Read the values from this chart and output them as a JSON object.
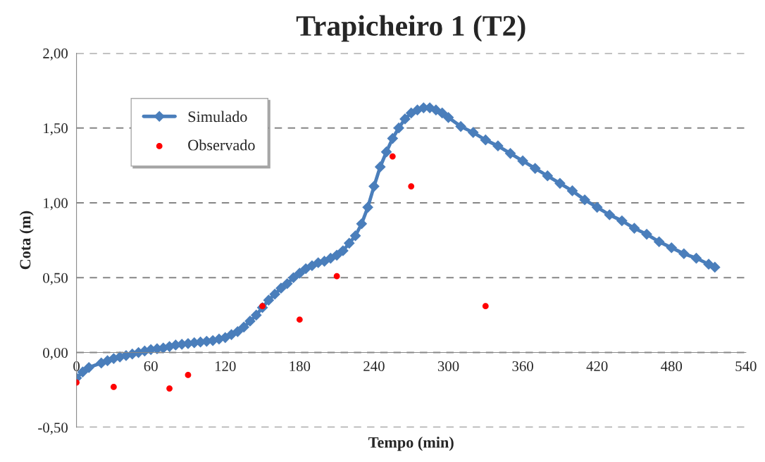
{
  "chart_data": {
    "type": "line",
    "title": "Trapicheiro 1 (T2)",
    "xlabel": "Tempo (min)",
    "ylabel": "Cota (m)",
    "xlim": [
      0,
      540
    ],
    "xticks": [
      0,
      60,
      120,
      180,
      240,
      300,
      360,
      420,
      480,
      540
    ],
    "ylim": [
      -0.5,
      2.0
    ],
    "yticks": [
      {
        "value": -0.5,
        "label": "-0,50"
      },
      {
        "value": 0,
        "label": "0,00"
      },
      {
        "value": 0.5,
        "label": "0,50"
      },
      {
        "value": 1.0,
        "label": "1,00"
      },
      {
        "value": 1.5,
        "label": "1,50"
      },
      {
        "value": 2.0,
        "label": "2,00"
      }
    ],
    "grid": "y",
    "legend": "top left",
    "series": [
      {
        "name": "Simulado",
        "color": "#4a7ebb",
        "marker": "diamond",
        "x": [
          0,
          5,
          10,
          20,
          25,
          30,
          35,
          40,
          45,
          50,
          55,
          60,
          65,
          70,
          75,
          80,
          85,
          90,
          95,
          100,
          105,
          110,
          115,
          120,
          125,
          130,
          135,
          140,
          145,
          150,
          155,
          160,
          165,
          170,
          175,
          180,
          185,
          190,
          195,
          200,
          205,
          210,
          215,
          220,
          225,
          230,
          235,
          240,
          245,
          250,
          255,
          260,
          265,
          270,
          275,
          280,
          285,
          290,
          295,
          300,
          310,
          320,
          330,
          340,
          350,
          360,
          370,
          380,
          390,
          400,
          410,
          420,
          430,
          440,
          450,
          460,
          470,
          480,
          490,
          500,
          510,
          515
        ],
        "values": [
          -0.17,
          -0.13,
          -0.1,
          -0.07,
          -0.055,
          -0.04,
          -0.03,
          -0.02,
          -0.01,
          0.0,
          0.01,
          0.02,
          0.025,
          0.03,
          0.04,
          0.05,
          0.055,
          0.06,
          0.065,
          0.07,
          0.075,
          0.08,
          0.09,
          0.1,
          0.12,
          0.14,
          0.17,
          0.21,
          0.25,
          0.3,
          0.35,
          0.39,
          0.43,
          0.46,
          0.5,
          0.53,
          0.56,
          0.58,
          0.6,
          0.61,
          0.63,
          0.65,
          0.68,
          0.73,
          0.78,
          0.86,
          0.97,
          1.11,
          1.24,
          1.34,
          1.43,
          1.5,
          1.56,
          1.6,
          1.62,
          1.635,
          1.635,
          1.62,
          1.6,
          1.57,
          1.51,
          1.47,
          1.42,
          1.38,
          1.33,
          1.28,
          1.23,
          1.18,
          1.13,
          1.08,
          1.02,
          0.97,
          0.92,
          0.88,
          0.83,
          0.79,
          0.74,
          0.7,
          0.66,
          0.63,
          0.59,
          0.57
        ]
      },
      {
        "name": "Observado",
        "type": "scatter",
        "color": "#ff0000",
        "marker": "circle",
        "x": [
          0,
          30,
          75,
          90,
          150,
          180,
          210,
          255,
          270,
          330
        ],
        "values": [
          -0.2,
          -0.23,
          -0.24,
          -0.15,
          0.31,
          0.22,
          0.51,
          1.31,
          1.11,
          0.31
        ]
      }
    ]
  }
}
